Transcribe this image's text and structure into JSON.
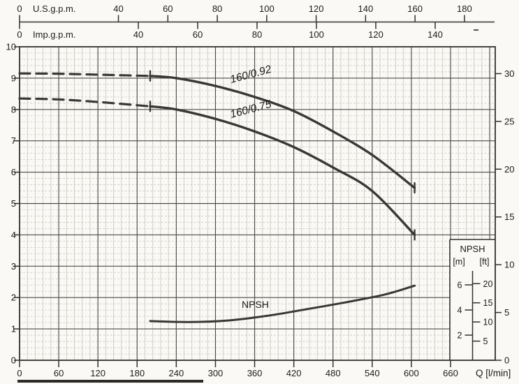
{
  "chart_data": {
    "type": "line",
    "title": "",
    "x_bottom": {
      "label": "Q [l/min]",
      "ticks": [
        0,
        60,
        120,
        180,
        240,
        300,
        360,
        420,
        480,
        540,
        600,
        660
      ],
      "range": [
        0,
        730
      ]
    },
    "x_top_us": {
      "label": "U.S.g.p.m.",
      "ticks": [
        0,
        40,
        60,
        80,
        100,
        120,
        140,
        160,
        180
      ],
      "lmin_per_unit": 3.785
    },
    "x_top_imp": {
      "label": "Imp.g.p.m.",
      "ticks": [
        0,
        40,
        60,
        80,
        100,
        120,
        140
      ],
      "lmin_per_unit": 4.546
    },
    "y_left": {
      "unit": "m",
      "ticks": [
        0,
        1,
        2,
        3,
        4,
        5,
        6,
        7,
        8,
        9,
        10
      ],
      "range": [
        0,
        10
      ]
    },
    "y_right": {
      "unit": "ft",
      "ticks": [
        0,
        5,
        10,
        15,
        20,
        25,
        30
      ],
      "m_per_unit": 0.3048
    },
    "grid": {
      "x_major_step": 60,
      "x_fine_step": 12,
      "y_major_step": 1,
      "y_fine_step": 0.2,
      "grid_on": true
    },
    "series": [
      {
        "name": "curve-160-092",
        "label": "160/0.92",
        "dash_until": 200,
        "start_tick": true,
        "end_tick": true,
        "points": [
          [
            0,
            9.15
          ],
          [
            60,
            9.14
          ],
          [
            120,
            9.11
          ],
          [
            200,
            9.07
          ],
          [
            240,
            9.0
          ],
          [
            300,
            8.75
          ],
          [
            360,
            8.4
          ],
          [
            420,
            7.95
          ],
          [
            480,
            7.3
          ],
          [
            540,
            6.55
          ],
          [
            605,
            5.5
          ]
        ]
      },
      {
        "name": "curve-160-075",
        "label": "160/0.75",
        "dash_until": 200,
        "start_tick": true,
        "end_tick": true,
        "points": [
          [
            0,
            8.35
          ],
          [
            60,
            8.32
          ],
          [
            120,
            8.24
          ],
          [
            200,
            8.1
          ],
          [
            240,
            8.0
          ],
          [
            300,
            7.7
          ],
          [
            360,
            7.3
          ],
          [
            420,
            6.8
          ],
          [
            480,
            6.15
          ],
          [
            540,
            5.4
          ],
          [
            605,
            4.0
          ]
        ]
      },
      {
        "name": "curve-npsh",
        "label": "NPSH",
        "dash_until": null,
        "start_tick": false,
        "end_tick": false,
        "points": [
          [
            200,
            1.25
          ],
          [
            260,
            1.22
          ],
          [
            320,
            1.27
          ],
          [
            380,
            1.42
          ],
          [
            440,
            1.63
          ],
          [
            500,
            1.85
          ],
          [
            560,
            2.1
          ],
          [
            605,
            2.38
          ]
        ]
      }
    ],
    "npsh_inset": {
      "title": "NPSH",
      "unit_labels": [
        "[m]",
        "[ft]"
      ],
      "m_ticks": [
        2,
        4,
        6
      ],
      "ft_ticks": [
        5,
        10,
        15,
        20
      ]
    },
    "colors": {
      "curve": "#3a3836",
      "grid_major": "#4d4b47",
      "grid_fine": "#c7c4bd",
      "border": "#33312e",
      "text": "#1d1c1a"
    }
  }
}
